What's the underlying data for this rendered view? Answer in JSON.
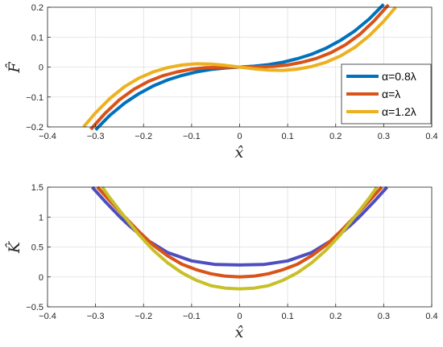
{
  "chart_data": [
    {
      "type": "line",
      "xlabel": "x̂",
      "ylabel": "F̂",
      "xlim": [
        -0.4,
        0.4
      ],
      "ylim": [
        -0.2,
        0.2
      ],
      "xticks": [
        "-0.4",
        "-0.3",
        "-0.2",
        "-0.1",
        "0",
        "0.1",
        "0.2",
        "0.3",
        "0.4"
      ],
      "yticks": [
        "-0.2",
        "-0.1",
        "0",
        "0.1",
        "0.2"
      ],
      "grid": true,
      "legend_position": "bottom-right",
      "series": [
        {
          "name": "α=0.8λ",
          "color": "#0072BD",
          "x": [
            -0.3,
            -0.27,
            -0.24,
            -0.21,
            -0.18,
            -0.15,
            -0.12,
            -0.09,
            -0.06,
            -0.03,
            0,
            0.03,
            0.06,
            0.09,
            0.12,
            0.15,
            0.18,
            0.21,
            0.24,
            0.27,
            0.3
          ],
          "y": [
            -0.21,
            -0.161,
            -0.121,
            -0.089,
            -0.063,
            -0.043,
            -0.028,
            -0.016,
            -0.008,
            -0.003,
            0,
            0.003,
            0.008,
            0.016,
            0.028,
            0.043,
            0.063,
            0.089,
            0.121,
            0.161,
            0.21
          ]
        },
        {
          "name": "α=λ",
          "color": "#D95319",
          "x": [
            -0.31,
            -0.28,
            -0.25,
            -0.22,
            -0.19,
            -0.16,
            -0.13,
            -0.1,
            -0.07,
            -0.04,
            0,
            0.04,
            0.07,
            0.1,
            0.13,
            0.16,
            0.19,
            0.22,
            0.25,
            0.28,
            0.31
          ],
          "y": [
            -0.208,
            -0.154,
            -0.109,
            -0.074,
            -0.048,
            -0.029,
            -0.016,
            -0.007,
            -0.002,
            -0.001,
            0,
            0.001,
            0.002,
            0.007,
            0.016,
            0.029,
            0.048,
            0.074,
            0.109,
            0.154,
            0.208
          ]
        },
        {
          "name": "α=1.2λ",
          "color": "#EDB120",
          "x": [
            -0.325,
            -0.3,
            -0.27,
            -0.24,
            -0.21,
            -0.18,
            -0.15,
            -0.12,
            -0.09,
            -0.06,
            -0.03,
            0,
            0.03,
            0.06,
            0.09,
            0.12,
            0.15,
            0.18,
            0.21,
            0.24,
            0.27,
            0.3,
            0.325
          ],
          "y": [
            -0.2,
            -0.153,
            -0.105,
            -0.066,
            -0.037,
            -0.016,
            -0.002,
            0.007,
            0.011,
            0.01,
            0.006,
            0,
            -0.006,
            -0.01,
            -0.011,
            -0.007,
            0.002,
            0.016,
            0.037,
            0.066,
            0.105,
            0.153,
            0.2
          ]
        }
      ]
    },
    {
      "type": "line",
      "xlabel": "x̂",
      "ylabel": "K̂",
      "xlim": [
        -0.4,
        0.4
      ],
      "ylim": [
        -0.5,
        1.5
      ],
      "xticks": [
        "-0.4",
        "-0.3",
        "-0.2",
        "-0.1",
        "0",
        "0.1",
        "0.2",
        "0.3",
        "0.4"
      ],
      "yticks": [
        "-0.5",
        "0",
        "0.5",
        "1",
        "1.5"
      ],
      "grid": true,
      "series": [
        {
          "color": "#4E4FBF",
          "x": [
            -0.307,
            -0.28,
            -0.25,
            -0.23,
            -0.2,
            -0.15,
            -0.1,
            -0.05,
            0,
            0.05,
            0.1,
            0.15,
            0.2,
            0.23,
            0.25,
            0.28,
            0.307
          ],
          "y": [
            1.5,
            1.26,
            1.01,
            0.857,
            0.653,
            0.407,
            0.268,
            0.208,
            0.2,
            0.208,
            0.268,
            0.407,
            0.653,
            0.857,
            1.01,
            1.26,
            1.5
          ]
        },
        {
          "color": "#D95319",
          "x": [
            -0.296,
            -0.27,
            -0.24,
            -0.21,
            -0.18,
            -0.15,
            -0.12,
            -0.09,
            -0.06,
            -0.03,
            0,
            0.03,
            0.06,
            0.09,
            0.12,
            0.15,
            0.18,
            0.21,
            0.24,
            0.27,
            0.296
          ],
          "y": [
            1.5,
            1.27,
            1.01,
            0.761,
            0.532,
            0.352,
            0.212,
            0.12,
            0.053,
            0.013,
            0,
            0.013,
            0.053,
            0.12,
            0.212,
            0.352,
            0.532,
            0.761,
            1.01,
            1.27,
            1.5
          ]
        },
        {
          "color": "#C8C028",
          "x": [
            -0.286,
            -0.27,
            -0.24,
            -0.21,
            -0.18,
            -0.15,
            -0.12,
            -0.09,
            -0.06,
            -0.03,
            0,
            0.03,
            0.06,
            0.09,
            0.12,
            0.15,
            0.18,
            0.21,
            0.24,
            0.27,
            0.286
          ],
          "y": [
            1.5,
            1.32,
            1.01,
            0.708,
            0.448,
            0.235,
            0.068,
            -0.057,
            -0.145,
            -0.187,
            -0.2,
            -0.187,
            -0.145,
            -0.057,
            0.068,
            0.235,
            0.448,
            0.708,
            1.01,
            1.32,
            1.5
          ]
        }
      ]
    }
  ]
}
